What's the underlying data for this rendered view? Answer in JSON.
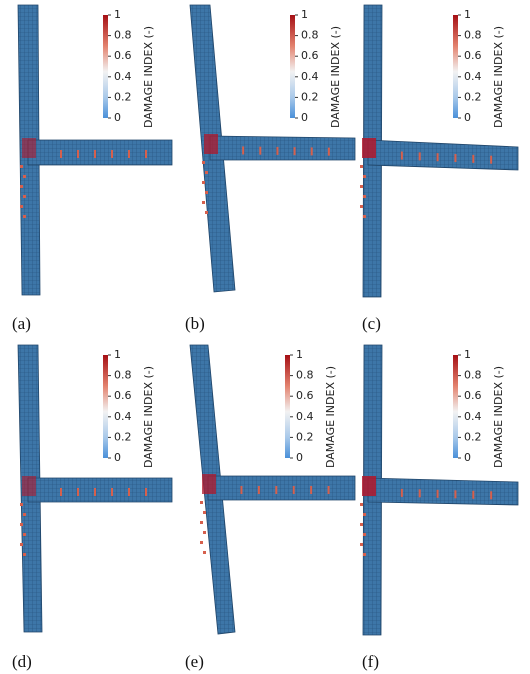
{
  "panels": [
    {
      "label": "(a)",
      "colorbar": {
        "title": "DAMAGE INDEX (-)",
        "ticks": [
          "1",
          "0.8",
          "0.6",
          "0.4",
          "0.2",
          "0"
        ]
      }
    },
    {
      "label": "(b)",
      "colorbar": {
        "title": "DAMAGE INDEX (-)",
        "ticks": [
          "1",
          "0.8",
          "0.6",
          "0.4",
          "0.2",
          "0"
        ]
      }
    },
    {
      "label": "(c)",
      "colorbar": {
        "title": "DAMAGE INDEX (-)",
        "ticks": [
          "1",
          "0.8",
          "0.6",
          "0.4",
          "0.2",
          "0"
        ]
      }
    },
    {
      "label": "(d)",
      "colorbar": {
        "title": "DAMAGE INDEX (-)",
        "ticks": [
          "1",
          "0.8",
          "0.6",
          "0.4",
          "0.2",
          "0"
        ]
      }
    },
    {
      "label": "(e)",
      "colorbar": {
        "title": "DAMAGE INDEX (-)",
        "ticks": [
          "1",
          "0.8",
          "0.6",
          "0.4",
          "0.2",
          "0"
        ]
      }
    },
    {
      "label": "(f)",
      "colorbar": {
        "title": "DAMAGE INDEX (-)",
        "ticks": [
          "1",
          "0.8",
          "0.6",
          "0.4",
          "0.2",
          "0"
        ]
      }
    }
  ]
}
